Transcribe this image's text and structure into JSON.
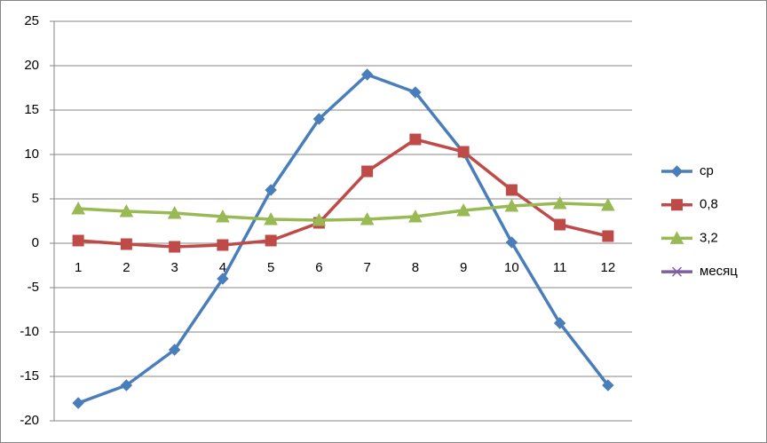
{
  "chart_data": {
    "type": "line",
    "categories": [
      "1",
      "2",
      "3",
      "4",
      "5",
      "6",
      "7",
      "8",
      "9",
      "10",
      "11",
      "12"
    ],
    "series": [
      {
        "name": "ср",
        "color": "#4a7ebb",
        "marker": "diamond",
        "values": [
          -18,
          -16,
          -12,
          -4,
          6,
          14,
          19,
          17,
          10.2,
          0.1,
          -9,
          -16
        ]
      },
      {
        "name": "0,8",
        "color": "#be4b48",
        "marker": "square",
        "values": [
          0.3,
          -0.1,
          -0.4,
          -0.2,
          0.3,
          2.3,
          8.1,
          11.7,
          10.3,
          6.0,
          2.1,
          0.8
        ]
      },
      {
        "name": "3,2",
        "color": "#98b954",
        "marker": "triangle",
        "values": [
          3.9,
          3.6,
          3.4,
          3.0,
          2.7,
          2.6,
          2.7,
          3.0,
          3.7,
          4.2,
          4.5,
          4.3
        ]
      },
      {
        "name": "месяц",
        "color": "#7d60a0",
        "marker": "x",
        "values": [
          null,
          null,
          null,
          null,
          null,
          null,
          null,
          null,
          null,
          null,
          null,
          null
        ]
      }
    ],
    "ylim": [
      -20,
      25
    ],
    "yticks": [
      -20,
      -15,
      -10,
      -5,
      0,
      5,
      10,
      15,
      20,
      25
    ],
    "grid": true,
    "legend": "right"
  }
}
